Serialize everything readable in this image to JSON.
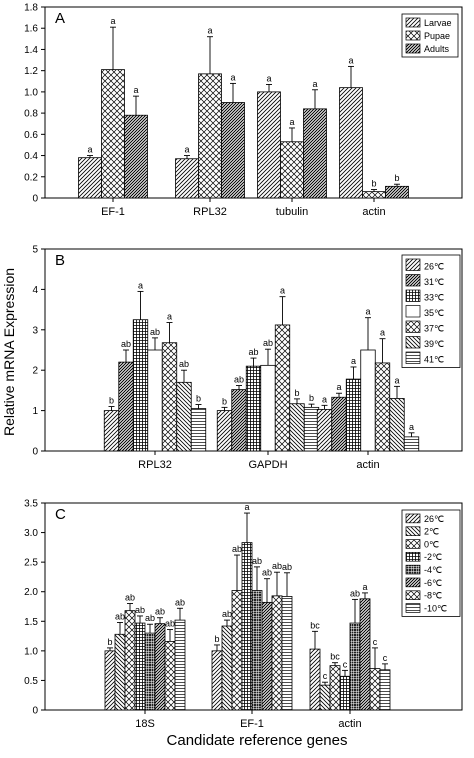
{
  "figure": {
    "ylabel": "Relative mRNA Expression",
    "xlabel": "Candidate reference genes"
  },
  "chart_data": [
    {
      "type": "bar",
      "panel": "A",
      "categories": [
        "EF-1",
        "RPL32",
        "tubulin",
        "actin"
      ],
      "ylim": [
        0,
        1.8
      ],
      "yticks": [
        "0",
        "0.2",
        "0.4",
        "0.6",
        "0.8",
        "1.0",
        "1.2",
        "1.4",
        "1.6",
        "1.8"
      ],
      "legend_position": "top-right",
      "series": [
        {
          "name": "Larvae",
          "values": [
            0.38,
            0.37,
            1.0,
            1.04
          ],
          "errors": [
            0.02,
            0.03,
            0.07,
            0.2
          ],
          "letters": [
            "a",
            "a",
            "a",
            "a"
          ]
        },
        {
          "name": "Pupae",
          "values": [
            1.21,
            1.17,
            0.53,
            0.06
          ],
          "errors": [
            0.4,
            0.35,
            0.13,
            0.02
          ],
          "letters": [
            "a",
            "a",
            "a",
            "b"
          ]
        },
        {
          "name": "Adults",
          "values": [
            0.78,
            0.9,
            0.84,
            0.11
          ],
          "errors": [
            0.18,
            0.18,
            0.18,
            0.02
          ],
          "letters": [
            "a",
            "a",
            "a",
            "b"
          ]
        }
      ]
    },
    {
      "type": "bar",
      "panel": "B",
      "categories": [
        "RPL32",
        "GAPDH",
        "actin"
      ],
      "ylim": [
        0,
        5
      ],
      "yticks": [
        "0",
        "1",
        "2",
        "3",
        "4",
        "5"
      ],
      "legend_position": "top-right",
      "series": [
        {
          "name": "26℃",
          "values": [
            1.0,
            1.0,
            1.03
          ],
          "errors": [
            0.1,
            0.08,
            0.1
          ],
          "letters": [
            "b",
            "b",
            "a"
          ]
        },
        {
          "name": "31℃",
          "values": [
            2.2,
            1.52,
            1.33
          ],
          "errors": [
            0.3,
            0.1,
            0.1
          ],
          "letters": [
            "ab",
            "ab",
            "a"
          ]
        },
        {
          "name": "33℃",
          "values": [
            3.25,
            2.1,
            1.78
          ],
          "errors": [
            0.7,
            0.2,
            0.3
          ],
          "letters": [
            "a",
            "ab",
            "a"
          ]
        },
        {
          "name": "35℃",
          "values": [
            2.5,
            2.12,
            2.5
          ],
          "errors": [
            0.3,
            0.4,
            0.8
          ],
          "letters": [
            "ab",
            "ab",
            "a"
          ]
        },
        {
          "name": "37℃",
          "values": [
            2.68,
            3.12,
            2.18
          ],
          "errors": [
            0.5,
            0.7,
            0.6
          ],
          "letters": [
            "a",
            "a",
            "a"
          ]
        },
        {
          "name": "39℃",
          "values": [
            1.7,
            1.17,
            1.3
          ],
          "errors": [
            0.3,
            0.12,
            0.3
          ],
          "letters": [
            "ab",
            "b",
            "a"
          ]
        },
        {
          "name": "41℃",
          "values": [
            1.05,
            1.08,
            0.35
          ],
          "errors": [
            0.1,
            0.08,
            0.1
          ],
          "letters": [
            "b",
            "b",
            "a"
          ]
        }
      ]
    },
    {
      "type": "bar",
      "panel": "C",
      "categories": [
        "18S",
        "EF-1",
        "actin"
      ],
      "ylim": [
        0,
        3.5
      ],
      "yticks": [
        "0",
        "0.5",
        "1.0",
        "1.5",
        "2.0",
        "2.5",
        "3.0",
        "3.5"
      ],
      "legend_position": "top-right",
      "series": [
        {
          "name": "26℃",
          "values": [
            1.0,
            1.0,
            1.03
          ],
          "errors": [
            0.05,
            0.1,
            0.3
          ],
          "letters": [
            "b",
            "b",
            "bc"
          ]
        },
        {
          "name": "2℃",
          "values": [
            1.28,
            1.42,
            0.42
          ],
          "errors": [
            0.2,
            0.1,
            0.05
          ],
          "letters": [
            "ab",
            "ab",
            "c"
          ]
        },
        {
          "name": "0℃",
          "values": [
            1.68,
            2.02,
            0.75
          ],
          "errors": [
            0.12,
            0.6,
            0.05
          ],
          "letters": [
            "ab",
            "ab",
            "bc"
          ]
        },
        {
          "name": "-2℃",
          "values": [
            1.47,
            2.83,
            0.57
          ],
          "errors": [
            0.12,
            0.5,
            0.1
          ],
          "letters": [
            "ab",
            "a",
            "c"
          ]
        },
        {
          "name": "-4℃",
          "values": [
            1.3,
            2.02,
            1.47
          ],
          "errors": [
            0.15,
            0.4,
            0.4
          ],
          "letters": [
            "ab",
            "ab",
            "ab"
          ]
        },
        {
          "name": "-6℃",
          "values": [
            1.46,
            1.82,
            1.88
          ],
          "errors": [
            0.1,
            0.4,
            0.1
          ],
          "letters": [
            "ab",
            "ab",
            "a"
          ]
        },
        {
          "name": "-8℃",
          "values": [
            1.16,
            1.93,
            0.7
          ],
          "errors": [
            0.2,
            0.4,
            0.35
          ],
          "letters": [
            "ab",
            "ab",
            "c"
          ]
        },
        {
          "name": "-10℃",
          "values": [
            1.52,
            1.92,
            0.68
          ],
          "errors": [
            0.2,
            0.4,
            0.1
          ],
          "letters": [
            "ab",
            "ab",
            "c"
          ]
        }
      ]
    }
  ]
}
